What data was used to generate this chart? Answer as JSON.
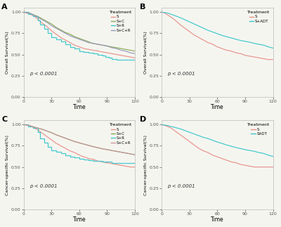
{
  "fig_bg": "#f5f5f0",
  "panel_bg": "#f5f5f0",
  "panels": [
    {
      "label": "A",
      "ylabel": "Overall Survival(%)",
      "xlabel": "Time",
      "xlim": [
        0,
        120
      ],
      "ylim": [
        0.0,
        1.05
      ],
      "yticks": [
        0.0,
        0.25,
        0.5,
        0.75,
        1.0
      ],
      "xticks": [
        0,
        30,
        60,
        90,
        120
      ],
      "pvalue": "p < 0.0001",
      "legend_title": "Treatment",
      "series": [
        {
          "label": "S",
          "color": "#e8928a",
          "style": "smooth",
          "x": [
            0,
            3,
            6,
            10,
            15,
            20,
            25,
            30,
            35,
            40,
            45,
            50,
            55,
            60,
            65,
            70,
            75,
            80,
            85,
            90,
            95,
            100,
            105,
            110,
            115,
            120
          ],
          "y": [
            1.0,
            0.99,
            0.98,
            0.96,
            0.92,
            0.87,
            0.83,
            0.78,
            0.74,
            0.7,
            0.67,
            0.64,
            0.61,
            0.59,
            0.57,
            0.56,
            0.55,
            0.54,
            0.53,
            0.52,
            0.51,
            0.5,
            0.49,
            0.48,
            0.47,
            0.46
          ]
        },
        {
          "label": "S+C",
          "color": "#8aaa55",
          "style": "smooth",
          "x": [
            0,
            3,
            6,
            10,
            15,
            20,
            25,
            30,
            35,
            40,
            45,
            50,
            55,
            60,
            65,
            70,
            75,
            80,
            85,
            90,
            95,
            100,
            105,
            110,
            115,
            120
          ],
          "y": [
            1.0,
            0.995,
            0.99,
            0.97,
            0.95,
            0.92,
            0.89,
            0.86,
            0.82,
            0.79,
            0.76,
            0.74,
            0.71,
            0.69,
            0.67,
            0.65,
            0.63,
            0.62,
            0.61,
            0.6,
            0.59,
            0.58,
            0.57,
            0.56,
            0.55,
            0.54
          ]
        },
        {
          "label": "S+R",
          "color": "#3ec8cc",
          "style": "step",
          "x": [
            0,
            5,
            10,
            15,
            18,
            22,
            26,
            30,
            35,
            40,
            45,
            50,
            55,
            60,
            65,
            70,
            75,
            80,
            85,
            88,
            92,
            95,
            100,
            105,
            110,
            115,
            120
          ],
          "y": [
            1.0,
            0.98,
            0.95,
            0.9,
            0.85,
            0.8,
            0.75,
            0.7,
            0.68,
            0.65,
            0.62,
            0.59,
            0.57,
            0.54,
            0.53,
            0.52,
            0.51,
            0.5,
            0.49,
            0.47,
            0.46,
            0.45,
            0.44,
            0.44,
            0.44,
            0.44,
            0.44
          ]
        },
        {
          "label": "S+C+R",
          "color": "#9898b8",
          "style": "smooth",
          "x": [
            0,
            3,
            6,
            10,
            15,
            20,
            25,
            30,
            35,
            40,
            45,
            50,
            55,
            60,
            65,
            70,
            75,
            80,
            85,
            90,
            95,
            100,
            105,
            110,
            115,
            120
          ],
          "y": [
            1.0,
            0.995,
            0.99,
            0.97,
            0.94,
            0.91,
            0.88,
            0.84,
            0.81,
            0.78,
            0.75,
            0.72,
            0.7,
            0.68,
            0.66,
            0.64,
            0.63,
            0.62,
            0.61,
            0.6,
            0.58,
            0.57,
            0.55,
            0.54,
            0.52,
            0.51
          ]
        }
      ]
    },
    {
      "label": "B",
      "ylabel": "Overall Survival(%)",
      "xlabel": "Time",
      "xlim": [
        0,
        120
      ],
      "ylim": [
        0.0,
        1.05
      ],
      "yticks": [
        0.0,
        0.25,
        0.5,
        0.75,
        1.0
      ],
      "xticks": [
        0,
        30,
        60,
        90,
        120
      ],
      "pvalue": "p < 0.0001",
      "legend_title": "Treatment",
      "series": [
        {
          "label": "S",
          "color": "#e8928a",
          "style": "smooth",
          "x": [
            0,
            3,
            6,
            10,
            15,
            20,
            25,
            30,
            35,
            40,
            45,
            50,
            55,
            60,
            65,
            70,
            75,
            80,
            85,
            90,
            95,
            100,
            105,
            110,
            115,
            120
          ],
          "y": [
            1.0,
            0.99,
            0.97,
            0.94,
            0.9,
            0.85,
            0.81,
            0.77,
            0.73,
            0.7,
            0.67,
            0.64,
            0.62,
            0.59,
            0.57,
            0.55,
            0.54,
            0.52,
            0.51,
            0.49,
            0.48,
            0.47,
            0.46,
            0.45,
            0.44,
            0.44
          ]
        },
        {
          "label": "S+ADT",
          "color": "#3ec8cc",
          "style": "smooth",
          "x": [
            0,
            3,
            6,
            10,
            15,
            20,
            25,
            30,
            35,
            40,
            45,
            50,
            55,
            60,
            65,
            70,
            75,
            80,
            85,
            90,
            95,
            100,
            105,
            110,
            115,
            120
          ],
          "y": [
            1.0,
            0.995,
            0.99,
            0.975,
            0.955,
            0.935,
            0.91,
            0.885,
            0.86,
            0.835,
            0.81,
            0.785,
            0.765,
            0.745,
            0.725,
            0.71,
            0.695,
            0.68,
            0.665,
            0.655,
            0.645,
            0.63,
            0.62,
            0.61,
            0.59,
            0.575
          ]
        }
      ]
    },
    {
      "label": "C",
      "ylabel": "Cancer-specific Survival(%)",
      "xlabel": "Time",
      "xlim": [
        0,
        120
      ],
      "ylim": [
        0.0,
        1.05
      ],
      "yticks": [
        0.0,
        0.25,
        0.5,
        0.75,
        1.0
      ],
      "xticks": [
        0,
        30,
        60,
        90,
        120
      ],
      "pvalue": "p < 0.0001",
      "legend_title": "Treatment",
      "series": [
        {
          "label": "S",
          "color": "#e8928a",
          "style": "smooth",
          "x": [
            0,
            3,
            6,
            10,
            15,
            20,
            25,
            30,
            35,
            40,
            45,
            50,
            55,
            60,
            65,
            70,
            75,
            80,
            85,
            90,
            95,
            100,
            105,
            110,
            115,
            120
          ],
          "y": [
            1.0,
            0.995,
            0.99,
            0.97,
            0.94,
            0.9,
            0.86,
            0.82,
            0.78,
            0.75,
            0.72,
            0.69,
            0.67,
            0.64,
            0.62,
            0.6,
            0.59,
            0.57,
            0.56,
            0.55,
            0.54,
            0.53,
            0.52,
            0.51,
            0.5,
            0.5
          ]
        },
        {
          "label": "S+C",
          "color": "#8aaa55",
          "style": "smooth",
          "x": [
            0,
            3,
            6,
            10,
            15,
            20,
            25,
            30,
            35,
            40,
            45,
            50,
            55,
            60,
            65,
            70,
            75,
            80,
            85,
            90,
            95,
            100,
            105,
            110,
            115,
            120
          ],
          "y": [
            1.0,
            0.995,
            0.99,
            0.975,
            0.96,
            0.945,
            0.925,
            0.905,
            0.88,
            0.86,
            0.84,
            0.82,
            0.8,
            0.785,
            0.77,
            0.755,
            0.74,
            0.728,
            0.715,
            0.705,
            0.695,
            0.685,
            0.675,
            0.665,
            0.655,
            0.645
          ]
        },
        {
          "label": "S+R",
          "color": "#3ec8cc",
          "style": "step",
          "x": [
            0,
            5,
            10,
            15,
            18,
            22,
            26,
            30,
            35,
            40,
            45,
            50,
            55,
            60,
            65,
            70,
            75,
            80,
            85,
            90,
            95,
            100,
            105,
            110,
            115,
            120
          ],
          "y": [
            1.0,
            0.98,
            0.96,
            0.91,
            0.84,
            0.79,
            0.74,
            0.7,
            0.68,
            0.66,
            0.64,
            0.62,
            0.61,
            0.6,
            0.59,
            0.58,
            0.57,
            0.57,
            0.56,
            0.56,
            0.55,
            0.55,
            0.55,
            0.55,
            0.55,
            0.55
          ]
        },
        {
          "label": "S+C+R",
          "color": "#c896a0",
          "style": "smooth",
          "x": [
            0,
            3,
            6,
            10,
            15,
            20,
            25,
            30,
            35,
            40,
            45,
            50,
            55,
            60,
            65,
            70,
            75,
            80,
            85,
            90,
            95,
            100,
            105,
            110,
            115,
            120
          ],
          "y": [
            1.0,
            0.995,
            0.99,
            0.975,
            0.96,
            0.945,
            0.925,
            0.905,
            0.88,
            0.86,
            0.84,
            0.82,
            0.8,
            0.785,
            0.77,
            0.755,
            0.74,
            0.728,
            0.715,
            0.705,
            0.695,
            0.685,
            0.675,
            0.665,
            0.655,
            0.645
          ]
        }
      ]
    },
    {
      "label": "D",
      "ylabel": "Cancer-specific Survival(%)",
      "xlabel": "Time",
      "xlim": [
        0,
        120
      ],
      "ylim": [
        0.0,
        1.05
      ],
      "yticks": [
        0.0,
        0.25,
        0.5,
        0.75,
        1.0
      ],
      "xticks": [
        0,
        30,
        60,
        90,
        120
      ],
      "pvalue": "p < 0.0001",
      "legend_title": "Treatment",
      "series": [
        {
          "label": "S",
          "color": "#e8928a",
          "style": "smooth",
          "x": [
            0,
            3,
            6,
            10,
            15,
            20,
            25,
            30,
            35,
            40,
            45,
            50,
            55,
            60,
            65,
            70,
            75,
            80,
            85,
            90,
            95,
            100,
            105,
            110,
            115,
            120
          ],
          "y": [
            1.0,
            0.99,
            0.98,
            0.96,
            0.92,
            0.88,
            0.84,
            0.8,
            0.76,
            0.72,
            0.69,
            0.67,
            0.64,
            0.62,
            0.6,
            0.58,
            0.56,
            0.55,
            0.53,
            0.52,
            0.51,
            0.5,
            0.5,
            0.5,
            0.5,
            0.5
          ]
        },
        {
          "label": "SADT",
          "color": "#3ec8cc",
          "style": "smooth",
          "x": [
            0,
            3,
            6,
            10,
            15,
            20,
            25,
            30,
            35,
            40,
            45,
            50,
            55,
            60,
            65,
            70,
            75,
            80,
            85,
            90,
            95,
            100,
            105,
            110,
            115,
            120
          ],
          "y": [
            1.0,
            0.995,
            0.99,
            0.978,
            0.965,
            0.95,
            0.93,
            0.91,
            0.89,
            0.87,
            0.85,
            0.835,
            0.815,
            0.795,
            0.778,
            0.76,
            0.745,
            0.73,
            0.718,
            0.705,
            0.695,
            0.685,
            0.67,
            0.66,
            0.64,
            0.625
          ]
        }
      ]
    }
  ]
}
